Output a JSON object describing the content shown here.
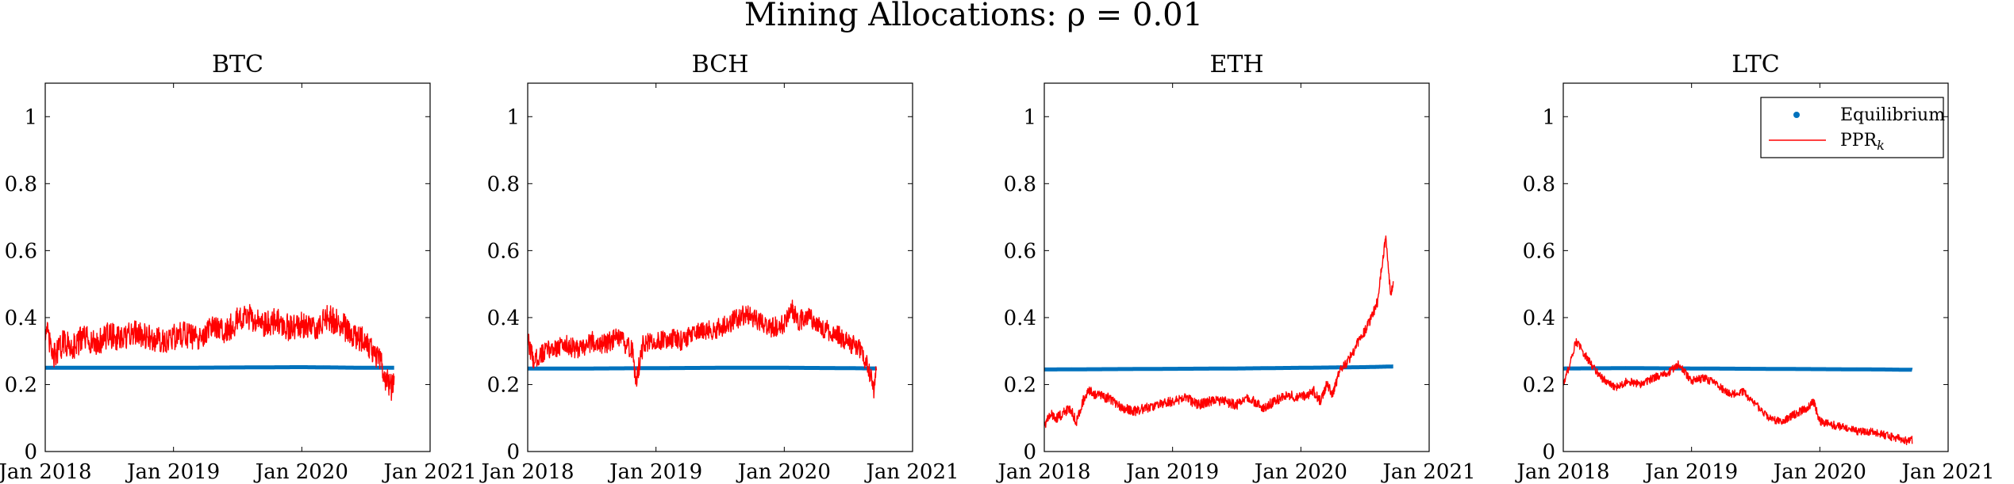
{
  "figure_title": "Mining Allocations: ρ = 0.01",
  "colors": {
    "equilibrium": "#0072BD",
    "ppr": "#FF0000",
    "axis": "#000000"
  },
  "legend": {
    "location": "top-right",
    "shown_in_panel": 3,
    "equilibrium_label": "Equilibrium",
    "ppr_label": "PPR",
    "ppr_subscript": "k"
  },
  "chart_data": [
    {
      "type": "line",
      "title": "BTC",
      "xlim": [
        2018.0,
        2021.0
      ],
      "ylim": [
        0,
        1.1
      ],
      "x_ticks": [
        2018,
        2019,
        2020,
        2021
      ],
      "x_tick_labels": [
        "Jan 2018",
        "Jan 2019",
        "Jan 2020",
        "Jan 2021"
      ],
      "y_ticks": [
        0,
        0.2,
        0.4,
        0.6,
        0.8,
        1
      ],
      "y_tick_labels": [
        "0",
        "0.2",
        "0.4",
        "0.6",
        "0.8",
        "1"
      ],
      "series": [
        {
          "name": "Equilibrium",
          "style": "dots",
          "x": [
            2018.0,
            2018.5,
            2019.0,
            2019.5,
            2020.0,
            2020.5,
            2020.72
          ],
          "y": [
            0.25,
            0.25,
            0.25,
            0.251,
            0.252,
            0.25,
            0.25
          ]
        },
        {
          "name": "PPR_k",
          "style": "line",
          "x": [
            2018.0,
            2018.03,
            2018.06,
            2018.1,
            2018.15,
            2018.2,
            2018.3,
            2018.4,
            2018.5,
            2018.6,
            2018.7,
            2018.8,
            2018.9,
            2019.0,
            2019.1,
            2019.2,
            2019.3,
            2019.4,
            2019.5,
            2019.6,
            2019.7,
            2019.8,
            2019.9,
            2020.0,
            2020.1,
            2020.2,
            2020.3,
            2020.4,
            2020.5,
            2020.55,
            2020.6,
            2020.65,
            2020.7,
            2020.72
          ],
          "y": [
            0.37,
            0.33,
            0.28,
            0.3,
            0.33,
            0.31,
            0.34,
            0.32,
            0.35,
            0.33,
            0.36,
            0.34,
            0.33,
            0.34,
            0.35,
            0.33,
            0.37,
            0.36,
            0.39,
            0.4,
            0.38,
            0.39,
            0.37,
            0.38,
            0.36,
            0.4,
            0.38,
            0.35,
            0.33,
            0.3,
            0.28,
            0.22,
            0.19,
            0.24
          ],
          "noise": 0.04
        }
      ]
    },
    {
      "type": "line",
      "title": "BCH",
      "xlim": [
        2018.0,
        2021.0
      ],
      "ylim": [
        0,
        1.1
      ],
      "x_ticks": [
        2018,
        2019,
        2020,
        2021
      ],
      "x_tick_labels": [
        "Jan 2018",
        "Jan 2019",
        "Jan 2020",
        "Jan 2021"
      ],
      "y_ticks": [
        0,
        0.2,
        0.4,
        0.6,
        0.8,
        1
      ],
      "y_tick_labels": [
        "0",
        "0.2",
        "0.4",
        "0.6",
        "0.8",
        "1"
      ],
      "series": [
        {
          "name": "Equilibrium",
          "style": "dots",
          "x": [
            2018.0,
            2018.5,
            2019.0,
            2019.5,
            2020.0,
            2020.5,
            2020.72
          ],
          "y": [
            0.248,
            0.248,
            0.249,
            0.25,
            0.25,
            0.249,
            0.248
          ]
        },
        {
          "name": "PPR_k",
          "style": "line",
          "x": [
            2018.0,
            2018.05,
            2018.1,
            2018.2,
            2018.3,
            2018.4,
            2018.5,
            2018.6,
            2018.7,
            2018.82,
            2018.84,
            2018.9,
            2019.0,
            2019.1,
            2019.2,
            2019.3,
            2019.4,
            2019.5,
            2019.6,
            2019.7,
            2019.8,
            2019.9,
            2020.0,
            2020.05,
            2020.1,
            2020.2,
            2020.3,
            2020.4,
            2020.5,
            2020.6,
            2020.65,
            2020.7,
            2020.72
          ],
          "y": [
            0.33,
            0.27,
            0.29,
            0.31,
            0.32,
            0.3,
            0.33,
            0.32,
            0.34,
            0.3,
            0.2,
            0.32,
            0.33,
            0.34,
            0.33,
            0.35,
            0.36,
            0.37,
            0.39,
            0.41,
            0.39,
            0.37,
            0.38,
            0.44,
            0.39,
            0.4,
            0.37,
            0.35,
            0.33,
            0.3,
            0.26,
            0.18,
            0.24
          ],
          "noise": 0.03
        }
      ]
    },
    {
      "type": "line",
      "title": "ETH",
      "xlim": [
        2018.0,
        2021.0
      ],
      "ylim": [
        0,
        1.1
      ],
      "x_ticks": [
        2018,
        2019,
        2020,
        2021
      ],
      "x_tick_labels": [
        "Jan 2018",
        "Jan 2019",
        "Jan 2020",
        "Jan 2021"
      ],
      "y_ticks": [
        0,
        0.2,
        0.4,
        0.6,
        0.8,
        1
      ],
      "y_tick_labels": [
        "0",
        "0.2",
        "0.4",
        "0.6",
        "0.8",
        "1"
      ],
      "series": [
        {
          "name": "Equilibrium",
          "style": "dots",
          "x": [
            2018.0,
            2018.5,
            2019.0,
            2019.5,
            2020.0,
            2020.5,
            2020.72
          ],
          "y": [
            0.245,
            0.246,
            0.247,
            0.248,
            0.25,
            0.252,
            0.254
          ]
        },
        {
          "name": "PPR_k",
          "style": "line",
          "x": [
            2018.0,
            2018.05,
            2018.1,
            2018.2,
            2018.25,
            2018.3,
            2018.35,
            2018.4,
            2018.5,
            2018.6,
            2018.7,
            2018.8,
            2018.9,
            2019.0,
            2019.1,
            2019.2,
            2019.3,
            2019.4,
            2019.5,
            2019.6,
            2019.7,
            2019.8,
            2019.9,
            2020.0,
            2020.1,
            2020.15,
            2020.2,
            2020.25,
            2020.3,
            2020.35,
            2020.4,
            2020.45,
            2020.5,
            2020.55,
            2020.6,
            2020.63,
            2020.66,
            2020.7,
            2020.72
          ],
          "y": [
            0.08,
            0.11,
            0.1,
            0.13,
            0.09,
            0.15,
            0.18,
            0.17,
            0.16,
            0.13,
            0.12,
            0.13,
            0.14,
            0.15,
            0.16,
            0.14,
            0.15,
            0.15,
            0.14,
            0.16,
            0.13,
            0.15,
            0.17,
            0.16,
            0.18,
            0.15,
            0.2,
            0.17,
            0.24,
            0.26,
            0.29,
            0.33,
            0.36,
            0.4,
            0.45,
            0.55,
            0.64,
            0.47,
            0.5
          ],
          "noise": 0.015
        }
      ]
    },
    {
      "type": "line",
      "title": "LTC",
      "xlim": [
        2018.0,
        2021.0
      ],
      "ylim": [
        0,
        1.1
      ],
      "x_ticks": [
        2018,
        2019,
        2020,
        2021
      ],
      "x_tick_labels": [
        "Jan 2018",
        "Jan 2019",
        "Jan 2020",
        "Jan 2021"
      ],
      "y_ticks": [
        0,
        0.2,
        0.4,
        0.6,
        0.8,
        1
      ],
      "y_tick_labels": [
        "0",
        "0.2",
        "0.4",
        "0.6",
        "0.8",
        "1"
      ],
      "series": [
        {
          "name": "Equilibrium",
          "style": "dots",
          "x": [
            2018.0,
            2018.5,
            2019.0,
            2019.5,
            2020.0,
            2020.5,
            2020.72
          ],
          "y": [
            0.248,
            0.249,
            0.248,
            0.247,
            0.246,
            0.245,
            0.244
          ]
        },
        {
          "name": "PPR_k",
          "style": "line",
          "x": [
            2018.0,
            2018.05,
            2018.1,
            2018.15,
            2018.2,
            2018.3,
            2018.4,
            2018.5,
            2018.6,
            2018.7,
            2018.8,
            2018.9,
            2019.0,
            2019.1,
            2019.2,
            2019.3,
            2019.4,
            2019.5,
            2019.6,
            2019.7,
            2019.8,
            2019.9,
            2019.95,
            2020.0,
            2020.1,
            2020.2,
            2020.3,
            2020.4,
            2020.5,
            2020.6,
            2020.7,
            2020.72
          ],
          "y": [
            0.2,
            0.26,
            0.33,
            0.3,
            0.27,
            0.22,
            0.19,
            0.21,
            0.2,
            0.22,
            0.23,
            0.26,
            0.21,
            0.22,
            0.2,
            0.17,
            0.18,
            0.14,
            0.1,
            0.09,
            0.11,
            0.13,
            0.15,
            0.09,
            0.08,
            0.07,
            0.06,
            0.06,
            0.05,
            0.04,
            0.03,
            0.035
          ],
          "noise": 0.012
        }
      ]
    }
  ]
}
